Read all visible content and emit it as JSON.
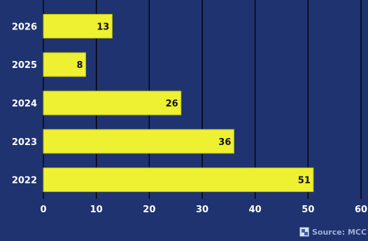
{
  "chart_data": {
    "type": "bar",
    "orientation": "horizontal",
    "categories": [
      "2026",
      "2025",
      "2024",
      "2023",
      "2022"
    ],
    "values": [
      13,
      8,
      26,
      36,
      51
    ],
    "xlim": [
      0,
      60
    ],
    "x_ticks": [
      "0",
      "10",
      "20",
      "30",
      "40",
      "50",
      "60"
    ],
    "grid": true,
    "bar_color": "#eef032",
    "background_color": "#1f3370",
    "gridline_color": "#000000"
  },
  "source": {
    "text": "Source: MCC",
    "icon": "chart-source-icon"
  }
}
